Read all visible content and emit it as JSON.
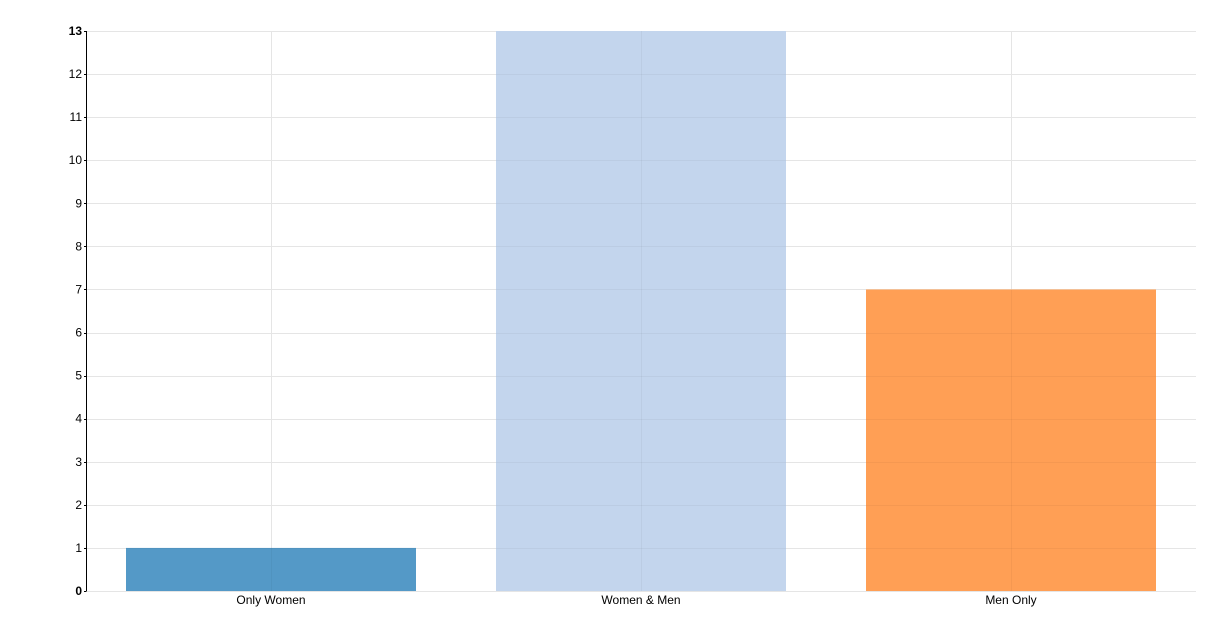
{
  "chart_data": {
    "type": "bar",
    "title": "",
    "xlabel": "",
    "ylabel": "",
    "categories": [
      "Only Women",
      "Women & Men",
      "Men Only"
    ],
    "values": [
      1,
      13,
      7
    ],
    "colors": [
      "#5499c7",
      "#c3d5ed",
      "#ff9f55"
    ],
    "ylim": [
      0,
      13
    ],
    "yticks": [
      0,
      1,
      2,
      3,
      4,
      5,
      6,
      7,
      8,
      9,
      10,
      11,
      12,
      13
    ],
    "grid": true,
    "legend": "none"
  }
}
